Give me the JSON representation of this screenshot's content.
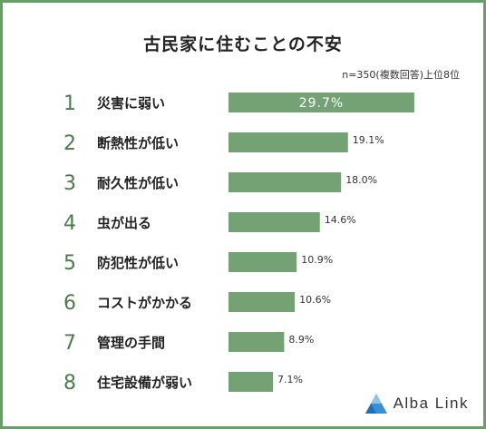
{
  "chart_data": {
    "type": "bar",
    "orientation": "horizontal",
    "title": "古民家に住むことの不安",
    "note": "n=350(複数回答)上位8位",
    "categories": [
      "災害に弱い",
      "断熱性が低い",
      "耐久性が低い",
      "虫が出る",
      "防犯性が低い",
      "コストがかかる",
      "管理の手間",
      "住宅設備が弱い"
    ],
    "ranks": [
      "1",
      "2",
      "3",
      "4",
      "5",
      "6",
      "7",
      "8"
    ],
    "values": [
      29.7,
      19.1,
      18.0,
      14.6,
      10.9,
      10.6,
      8.9,
      7.1
    ],
    "value_labels": [
      "29.7%",
      "19.1%",
      "18.0%",
      "14.6%",
      "10.9%",
      "10.6%",
      "8.9%",
      "7.1%"
    ],
    "xlim": [
      0,
      30
    ],
    "grid": false,
    "legend": "none",
    "colors": {
      "bar": "#74a274",
      "rank": "#4a7d4b",
      "border": "#6c9c6b",
      "inside_label": "#ffffff"
    }
  },
  "brand": {
    "name": "Alba Link",
    "logo_icon": "triangle-logo-icon"
  }
}
